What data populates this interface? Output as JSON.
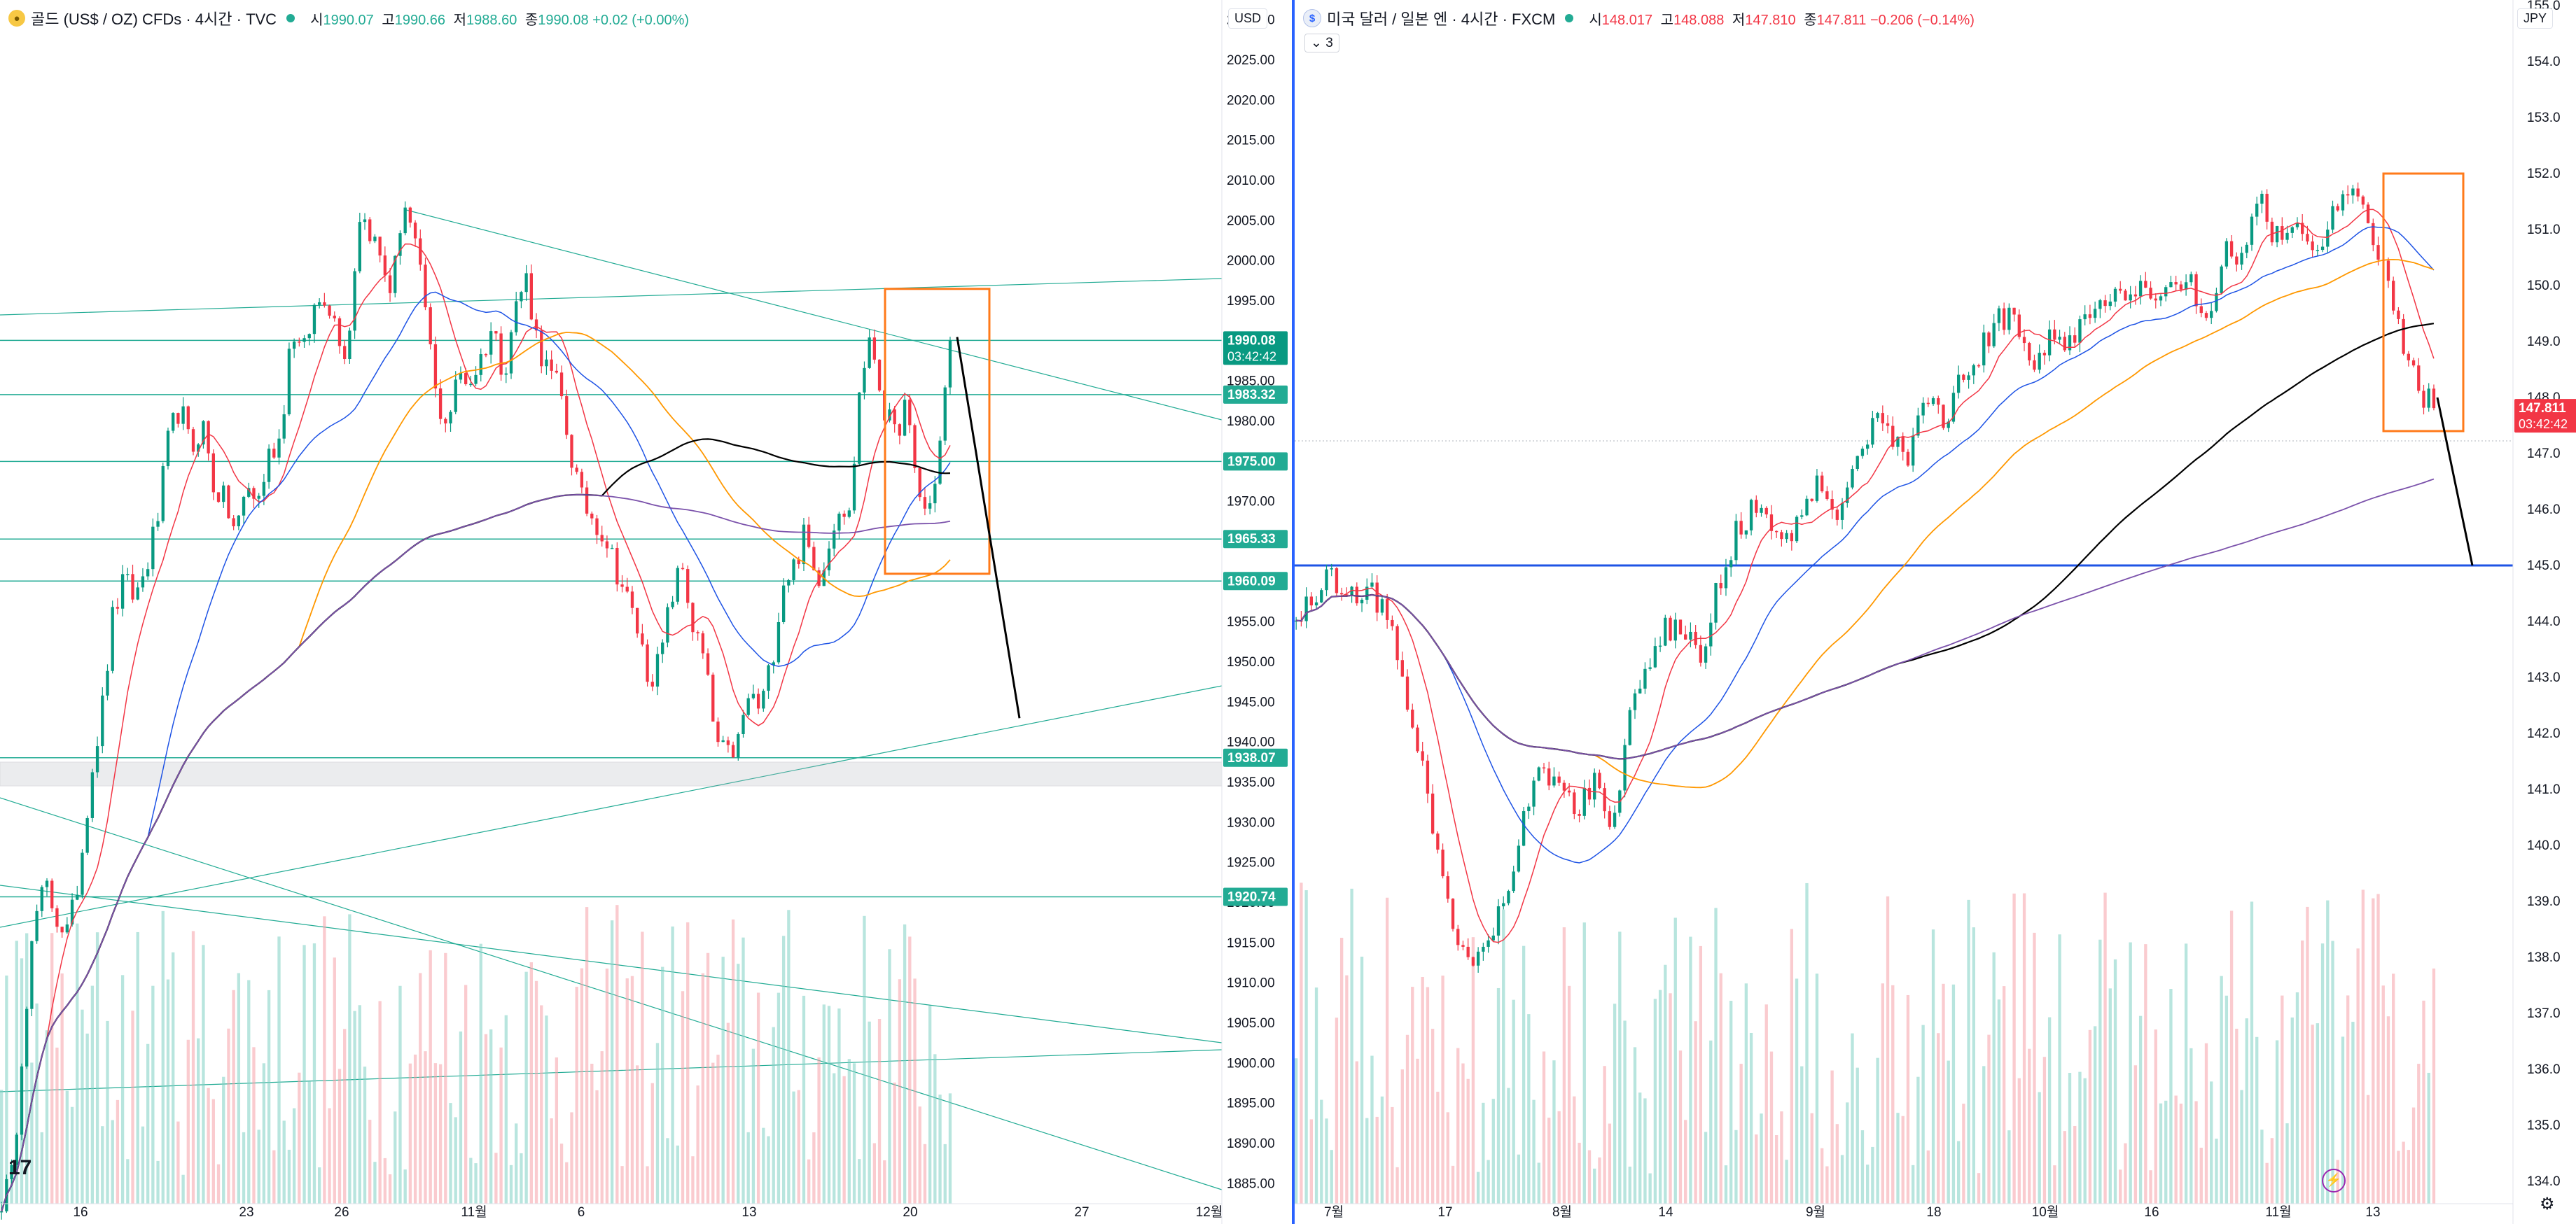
{
  "left": {
    "title": "골드 (US$ / OZ) CFDs · 4시간 · TVC",
    "ohlc": {
      "o_label": "시",
      "o": "1990.07",
      "h_label": "고",
      "h": "1990.66",
      "l_label": "저",
      "l": "1988.60",
      "c_label": "종",
      "c": "1990.08",
      "chg": "+0.02 (+0.00%)"
    },
    "currency": "USD",
    "price_labels": [
      {
        "text": "1990.08",
        "sub": "03:42:42",
        "value": 1990.08,
        "style": "current"
      },
      {
        "text": "1983.32",
        "value": 1983.32,
        "style": "level"
      },
      {
        "text": "1975.00",
        "value": 1975.0,
        "style": "level"
      },
      {
        "text": "1965.33",
        "value": 1965.33,
        "style": "level"
      },
      {
        "text": "1960.09",
        "value": 1960.09,
        "style": "level"
      },
      {
        "text": "1938.07",
        "value": 1938.07,
        "style": "level"
      },
      {
        "text": "1920.74",
        "value": 1920.74,
        "style": "level"
      }
    ],
    "logo": "17"
  },
  "right": {
    "title": "미국 달러 / 일본 엔 · 4시간 · FXCM",
    "ohlc": {
      "o_label": "시",
      "o": "148.017",
      "h_label": "고",
      "h": "148.088",
      "l_label": "저",
      "l": "147.810",
      "c_label": "종",
      "c": "147.811",
      "chg": "−0.206 (−0.14%)"
    },
    "indicator_badge": "⌄ 3",
    "currency": "JPY",
    "price_labels": [
      {
        "text": "147.811",
        "sub": "03:42:42",
        "value": 147.811,
        "style": "current"
      }
    ]
  },
  "chart_data": [
    {
      "type": "candlestick",
      "title": "골드 (US$ / OZ) CFDs · 4시간 · TVC",
      "xlabel": "",
      "ylabel": "",
      "x_tick_labels": [
        "16",
        "23",
        "26",
        "11월",
        "6",
        "13",
        "20",
        "27",
        "12월"
      ],
      "y_ticks": [
        1885,
        1890,
        1895,
        1900,
        1905,
        1910,
        1915,
        1920,
        1925,
        1930,
        1935,
        1940,
        1945,
        1950,
        1955,
        1960,
        1965,
        1970,
        1975,
        1980,
        1985,
        1990,
        1995,
        2000,
        2005,
        2010,
        2015,
        2020,
        2025,
        2030
      ],
      "ylim": [
        1882.5,
        2032.5
      ],
      "close_path": [
        1883,
        1886,
        1905,
        1918,
        1922,
        1918,
        1916,
        1924,
        1936,
        1944,
        1956,
        1960,
        1958,
        1962,
        1968,
        1978,
        1982,
        1976,
        1980,
        1972,
        1970,
        1966,
        1972,
        1970,
        1976,
        1978,
        1992,
        1988,
        1994,
        1996,
        1992,
        1988,
        2006,
        2004,
        2000,
        1996,
        2008,
        2002,
        1994,
        1982,
        1980,
        1986,
        1985,
        1988,
        1992,
        1986,
        1994,
        1998,
        1990,
        1986,
        1984,
        1976,
        1970,
        1968,
        1966,
        1962,
        1958,
        1954,
        1948,
        1950,
        1958,
        1962,
        1954,
        1950,
        1940,
        1938,
        1940,
        1946,
        1944,
        1950,
        1960,
        1962,
        1966,
        1960,
        1964,
        1970,
        1968,
        1986,
        1990,
        1982,
        1978,
        1982,
        1972,
        1968,
        1976,
        1990.08
      ],
      "levels": [
        1990.08,
        1983.32,
        1975.0,
        1965.33,
        1960.09,
        1938.07,
        1920.74
      ],
      "highlight_box": {
        "y1": 1961,
        "y2": 1996.5
      },
      "projection": {
        "from": 1990.5,
        "to": 1943
      },
      "ma": [
        {
          "color": "#f23645"
        },
        {
          "color": "#1e53e5"
        },
        {
          "color": "#ff9800"
        },
        {
          "color": "#000000"
        },
        {
          "color": "#7b52ab"
        }
      ]
    },
    {
      "type": "candlestick",
      "title": "미국 달러 / 일본 엔 · 4시간 · FXCM",
      "xlabel": "",
      "ylabel": "",
      "x_tick_labels": [
        "7월",
        "17",
        "8월",
        "14",
        "9월",
        "18",
        "10월",
        "16",
        "11월",
        "13"
      ],
      "y_ticks": [
        134,
        135,
        136,
        137,
        138,
        139,
        140,
        141,
        142,
        143,
        144,
        145,
        146,
        147,
        148,
        149,
        150,
        151,
        152,
        153,
        154,
        155
      ],
      "ylim": [
        133.6,
        155.1
      ],
      "close_path": [
        144.0,
        144.5,
        144.8,
        144.5,
        144.6,
        144.3,
        143.0,
        141.8,
        140.0,
        138.5,
        138.0,
        138.3,
        139.2,
        140.5,
        141.5,
        141.0,
        140.6,
        141.2,
        140.2,
        142.2,
        143.0,
        143.8,
        144.0,
        143.2,
        144.5,
        145.5,
        146.0,
        145.8,
        145.3,
        146.2,
        146.5,
        146.0,
        147.0,
        147.6,
        147.2,
        147.0,
        148.0,
        147.6,
        148.3,
        148.8,
        149.3,
        149.6,
        148.5,
        149.1,
        148.9,
        149.4,
        149.8,
        149.7,
        149.9,
        149.7,
        149.9,
        150.2,
        149.4,
        150.6,
        150.5,
        151.6,
        150.8,
        151.2,
        150.6,
        151.0,
        151.8,
        151.2,
        150.5,
        149.2,
        148.2,
        147.811
      ],
      "levels": [
        145.0
      ],
      "highlight_box": {
        "y1": 147.4,
        "y2": 152.0
      },
      "projection": {
        "from": 148.0,
        "to": 145.0
      },
      "ma": [
        {
          "color": "#f23645"
        },
        {
          "color": "#1e53e5"
        },
        {
          "color": "#ff9800"
        },
        {
          "color": "#000000"
        },
        {
          "color": "#7b52ab"
        }
      ]
    }
  ]
}
